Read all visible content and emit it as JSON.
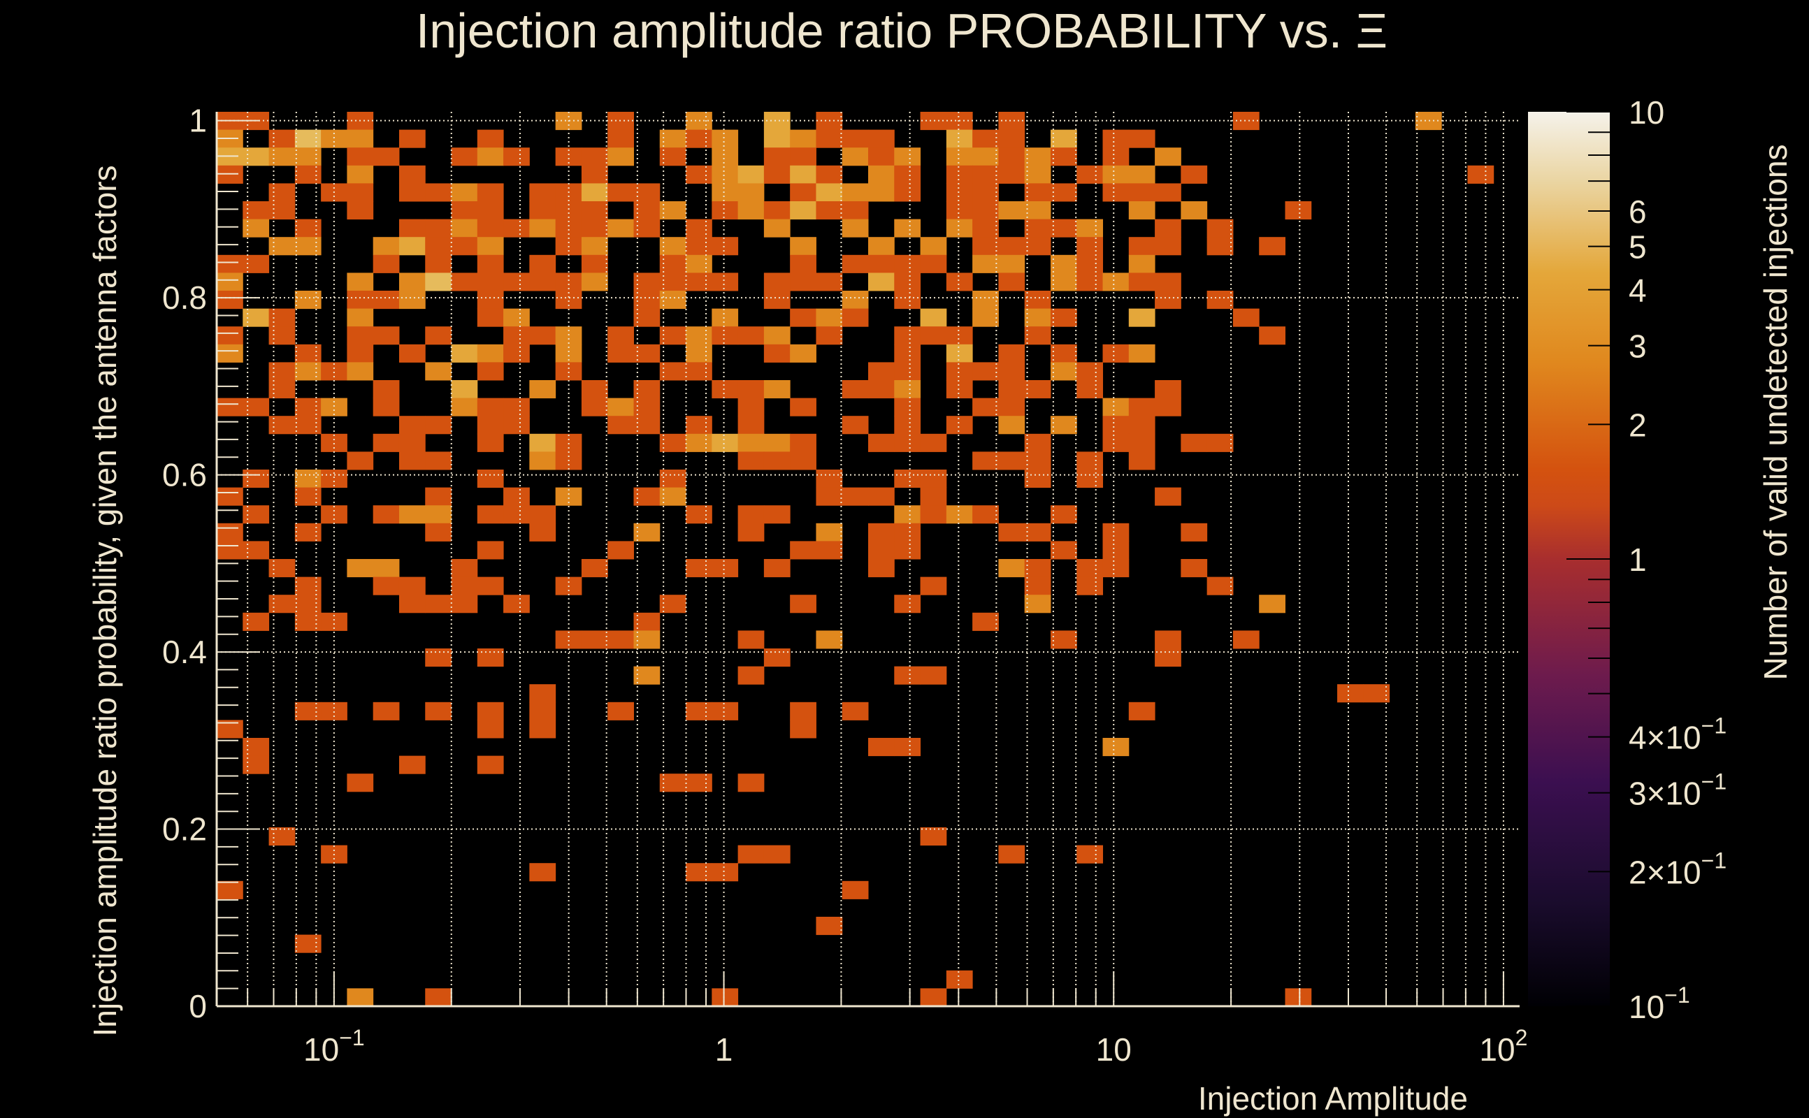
{
  "chart_data": {
    "type": "heatmap",
    "title": "Injection amplitude ratio PROBABILITY vs.  Ξ",
    "xlabel": "Injection Amplitude",
    "ylabel": "Injection amplitude ratio probability, given the antenna factors",
    "zlabel": "Number of valid undetected injections",
    "x_scale": "log",
    "xlim": [
      0.05,
      110
    ],
    "ylim": [
      0,
      1.01
    ],
    "zlim": [
      0.1,
      10
    ],
    "z_scale": "log",
    "grid": true,
    "x_bins": 50,
    "y_bins": 50,
    "x_ticks": [
      {
        "value": 0.1,
        "base": "10",
        "exp": "−1"
      },
      {
        "value": 1,
        "base": "1",
        "exp": ""
      },
      {
        "value": 10,
        "base": "10",
        "exp": ""
      },
      {
        "value": 100,
        "base": "10",
        "exp": "2"
      }
    ],
    "y_ticks": [
      {
        "value": 0,
        "label": "0"
      },
      {
        "value": 0.2,
        "label": "0.2"
      },
      {
        "value": 0.4,
        "label": "0.4"
      },
      {
        "value": 0.6,
        "label": "0.6"
      },
      {
        "value": 0.8,
        "label": "0.8"
      },
      {
        "value": 1,
        "label": "1"
      }
    ],
    "z_ticks": [
      {
        "value": 10,
        "base": "10",
        "exp": ""
      },
      {
        "value": 6,
        "base": "6",
        "exp": ""
      },
      {
        "value": 5,
        "base": "5",
        "exp": ""
      },
      {
        "value": 4,
        "base": "4",
        "exp": ""
      },
      {
        "value": 3,
        "base": "3",
        "exp": ""
      },
      {
        "value": 2,
        "base": "2",
        "exp": ""
      },
      {
        "value": 1,
        "base": "1",
        "exp": ""
      },
      {
        "value": 0.4,
        "base": "4×10",
        "exp": "−1"
      },
      {
        "value": 0.3,
        "base": "3×10",
        "exp": "−1"
      },
      {
        "value": 0.2,
        "base": "2×10",
        "exp": "−1"
      },
      {
        "value": 0.1,
        "base": "10",
        "exp": "−1"
      }
    ],
    "colormap": [
      "#000004",
      "#1b0c41",
      "#4a0c6b",
      "#781c6d",
      "#a52c60",
      "#cf4446",
      "#d4520f",
      "#e0881e",
      "#e4a73a",
      "#e8c77a",
      "#f5f0e4"
    ],
    "cell_colors": {
      "1": "#d4520f",
      "2": "#e0881e",
      "3": "#e4a73a",
      "4": "#e6bb5c"
    },
    "counts_rows_top_to_bottom": [
      "11...1.......2.1..2..3.1...11.1........1......2...",
      "2.1422.1..1....1.212.32111..311.3.11..............",
      "3322.11..121.112.1.2.11.212.22121.1.2.............",
      "1..1.2.1......1...123131.21.1112.122.1..........1.",
      "..1.11.1121.11311..22.13221.11.11.111.............",
      ".11..1...11.111.12.121311...1122...2.2...1........",
      ".2.1...1121121121.1..2..2.2.21.112..1.1...........",
      "..22..23112..12..211..2..2.2.111.1.11.1.1.........",
      "11....1.1.1.1.1..12...1.1111.22.21.2..............",
      "2....2.24111112.1111.111.31.1.1.21211.............",
      "1..2.112..1..1..12...1..2.1..2.1....1.1...........",
      ".31..2....12....1..2..121..3.2.21..3...1..........",
      "1.1..11.1..112.1.12112.1..111..1........1.........",
      "2..1.1.1.321.2.11.2..12...1.3.1.1.12..............",
      "..1212..2.1..1...11......11.111.21................",
      "..1...1..3..2.1.1..112..112.1.11.1..1.............",
      "11.12.1..211..121...1.1...1..11...211.............",
      "..11...11.11...11.1.1...1.1.1.2.2.11..............",
      "....1.11..1.31...123221..111...1..11.11...........",
      ".....1.11...21......111......111.1.1..............",
      ".1.21.....1......1.....1..11...1.1................",
      "1..1....1..1.2..12.....111.1........1.............",
      ".1..1.122.111.....1.11....2121..1.................",
      "1..1....1...1...2...1..2.11...11..1..1............",
      "11........1....1......11.11.....1.1...............",
      "..1..22..1....1...11.1...1....21.11..1............",
      "...1..11.11..1.............1...1.1....1...........",
      "..11...111.1.....1....1...1....2........2.........",
      ".1.11...........1............1....................",
      ".............1112...1..2........1...1..1..........",
      "........1.1..........1..............1.............",
      "................2...1.....11......................",
      "............1..............................11.....",
      "...11.1.1.1.1..1..11..1.1..........1..............",
      "1.........1.1.........1...........................",
      ".1.......................11.......2...............",
      ".1.....1..1.......................................",
      ".....1...........11.1.............................",
      "..................................................",
      "..................................................",
      "..1........................1......................",
      "....1...............11........1..1................",
      "............1.....11..............................",
      "1.......................1.........................",
      "..................................................",
      ".......................1..........................",
      "...1..............................................",
      "..................................................",
      "............................1.....................",
      ".....2..1..........1.......1.............1........"
    ]
  }
}
